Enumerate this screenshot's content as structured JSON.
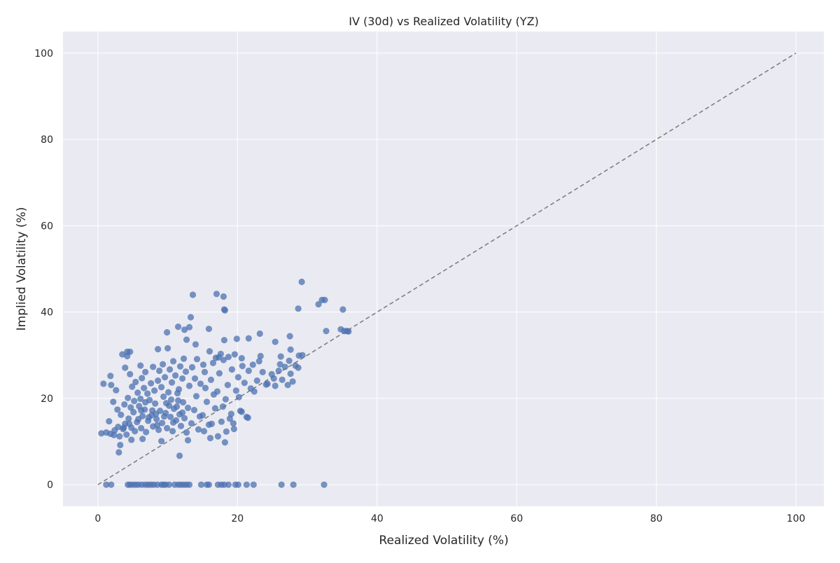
{
  "chart_data": {
    "type": "scatter",
    "title": "IV (30d) vs Realized Volatility (YZ)",
    "xlabel": "Realized Volatility (%)",
    "ylabel": "Implied Volatility (%)",
    "xlim": [
      -5,
      104
    ],
    "ylim": [
      -5,
      105
    ],
    "xticks": [
      0,
      20,
      40,
      60,
      80,
      100
    ],
    "yticks": [
      0,
      20,
      40,
      60,
      80,
      100
    ],
    "grid": true,
    "point_color": "#4c72b0",
    "reference_line": {
      "style": "dashed",
      "color": "#808080",
      "from": [
        0,
        0
      ],
      "to": [
        100,
        100
      ]
    },
    "points": [
      [
        29.2,
        47
      ],
      [
        13.6,
        44
      ],
      [
        17,
        44.2
      ],
      [
        18,
        43.6
      ],
      [
        18.1,
        40.6
      ],
      [
        18.2,
        40.4
      ],
      [
        28.7,
        40.8
      ],
      [
        31.6,
        41.8
      ],
      [
        32.1,
        42.8
      ],
      [
        32.5,
        42.8
      ],
      [
        35.1,
        40.6
      ],
      [
        13.3,
        38.8
      ],
      [
        11.5,
        36.6
      ],
      [
        13.1,
        36.5
      ],
      [
        15.9,
        36.1
      ],
      [
        32.7,
        35.6
      ],
      [
        34.8,
        36
      ],
      [
        35.3,
        35.6
      ],
      [
        35.7,
        35.6
      ],
      [
        35.9,
        35.5
      ],
      [
        9.9,
        35.3
      ],
      [
        12.4,
        35.9
      ],
      [
        27.5,
        34.4
      ],
      [
        23.2,
        35
      ],
      [
        21.6,
        33.9
      ],
      [
        25.4,
        33.1
      ],
      [
        12.7,
        33.6
      ],
      [
        14,
        32.5
      ],
      [
        8.6,
        31.4
      ],
      [
        10,
        31.6
      ],
      [
        4.2,
        30.8
      ],
      [
        4.6,
        30.8
      ],
      [
        4.2,
        29.8
      ],
      [
        29.3,
        30
      ],
      [
        28.8,
        29.9
      ],
      [
        27.6,
        31.3
      ],
      [
        26.2,
        29.7
      ],
      [
        3.5,
        30.2
      ],
      [
        6.1,
        27.6
      ],
      [
        0.8,
        23.4
      ],
      [
        1.8,
        25.2
      ],
      [
        3.0,
        7.5
      ],
      [
        11.7,
        6.7
      ],
      [
        3.2,
        9.2
      ],
      [
        1.6,
        14.7
      ],
      [
        0.5,
        11.9
      ],
      [
        1.2,
        12.1
      ],
      [
        1.8,
        11.8
      ],
      [
        2.4,
        12.6
      ],
      [
        2.9,
        13.4
      ],
      [
        3.1,
        11.2
      ],
      [
        3.6,
        12.9
      ],
      [
        3.9,
        14.1
      ],
      [
        4.1,
        11.6
      ],
      [
        4.4,
        15.3
      ],
      [
        4.8,
        13.2
      ],
      [
        5.1,
        16.8
      ],
      [
        5.3,
        12.4
      ],
      [
        5.6,
        14.5
      ],
      [
        5.9,
        18.2
      ],
      [
        6.2,
        13.1
      ],
      [
        6.4,
        15.9
      ],
      [
        6.7,
        17.4
      ],
      [
        6.9,
        12.2
      ],
      [
        7.2,
        14.8
      ],
      [
        7.4,
        19.6
      ],
      [
        7.7,
        16.1
      ],
      [
        7.9,
        13.5
      ],
      [
        8.2,
        18.8
      ],
      [
        8.4,
        15.2
      ],
      [
        8.7,
        12.7
      ],
      [
        8.9,
        17.1
      ],
      [
        9.2,
        14.3
      ],
      [
        9.4,
        20.4
      ],
      [
        9.7,
        16.6
      ],
      [
        9.9,
        13.1
      ],
      [
        10.2,
        18.3
      ],
      [
        10.4,
        15.7
      ],
      [
        10.7,
        12.4
      ],
      [
        10.9,
        17.6
      ],
      [
        11.2,
        14.9
      ],
      [
        11.4,
        21.2
      ],
      [
        11.7,
        16.3
      ],
      [
        11.9,
        13.6
      ],
      [
        12.2,
        19.1
      ],
      [
        12.4,
        15.4
      ],
      [
        12.7,
        12.1
      ],
      [
        12.9,
        17.8
      ],
      [
        3.3,
        16.2
      ],
      [
        3.8,
        18.6
      ],
      [
        4.3,
        20.1
      ],
      [
        4.7,
        17.9
      ],
      [
        5.2,
        19.4
      ],
      [
        5.7,
        21.3
      ],
      [
        6.1,
        19.9
      ],
      [
        6.6,
        22.4
      ],
      [
        7.1,
        21.1
      ],
      [
        7.6,
        23.5
      ],
      [
        8.1,
        21.8
      ],
      [
        8.6,
        24.1
      ],
      [
        9.1,
        22.6
      ],
      [
        9.6,
        24.9
      ],
      [
        10.1,
        21.4
      ],
      [
        10.6,
        23.7
      ],
      [
        11.1,
        25.3
      ],
      [
        11.6,
        22.1
      ],
      [
        12.1,
        24.6
      ],
      [
        12.6,
        26.2
      ],
      [
        13.1,
        22.9
      ],
      [
        5.4,
        23.8
      ],
      [
        4.6,
        25.6
      ],
      [
        6.8,
        26.1
      ],
      [
        7.9,
        27.3
      ],
      [
        9.3,
        27.9
      ],
      [
        10.8,
        28.6
      ],
      [
        3.9,
        27.1
      ],
      [
        2.6,
        21.9
      ],
      [
        2.2,
        19.2
      ],
      [
        1.9,
        23.1
      ],
      [
        2.8,
        17.4
      ],
      [
        4.9,
        22.7
      ],
      [
        6.3,
        24.7
      ],
      [
        8.8,
        26.4
      ],
      [
        10.3,
        26.7
      ],
      [
        11.8,
        27.4
      ],
      [
        12.3,
        29.2
      ],
      [
        13.4,
        14.2
      ],
      [
        13.8,
        17.3
      ],
      [
        14.1,
        20.5
      ],
      [
        14.4,
        12.8
      ],
      [
        14.7,
        23.4
      ],
      [
        15.0,
        16.1
      ],
      [
        15.3,
        26.1
      ],
      [
        15.6,
        19.2
      ],
      [
        15.9,
        13.9
      ],
      [
        16.2,
        24.3
      ],
      [
        16.5,
        28.2
      ],
      [
        16.8,
        17.7
      ],
      [
        17.1,
        21.6
      ],
      [
        17.4,
        25.8
      ],
      [
        17.7,
        14.6
      ],
      [
        18.0,
        28.9
      ],
      [
        18.3,
        19.8
      ],
      [
        18.6,
        23.1
      ],
      [
        18.9,
        15.3
      ],
      [
        19.2,
        26.7
      ],
      [
        19.5,
        12.9
      ],
      [
        19.8,
        21.8
      ],
      [
        20.1,
        24.9
      ],
      [
        20.4,
        17.1
      ],
      [
        20.7,
        27.5
      ],
      [
        21.0,
        23.6
      ],
      [
        21.3,
        15.7
      ],
      [
        21.6,
        26.4
      ],
      [
        13.5,
        27.2
      ],
      [
        14.2,
        29.1
      ],
      [
        15.1,
        27.8
      ],
      [
        16.0,
        30.9
      ],
      [
        16.9,
        29.4
      ],
      [
        17.6,
        30.3
      ],
      [
        18.7,
        29.6
      ],
      [
        19.6,
        30.2
      ],
      [
        20.6,
        29.3
      ],
      [
        19.9,
        33.8
      ],
      [
        18.1,
        33.5
      ],
      [
        17.3,
        29.5
      ],
      [
        15.4,
        22.4
      ],
      [
        16.6,
        20.9
      ],
      [
        17.9,
        18.1
      ],
      [
        19.1,
        16.4
      ],
      [
        18.4,
        12.3
      ],
      [
        17.2,
        11.2
      ],
      [
        16.3,
        14.1
      ],
      [
        15.2,
        12.4
      ],
      [
        14.6,
        15.8
      ],
      [
        13.9,
        24.6
      ],
      [
        20.2,
        20.3
      ],
      [
        21.9,
        22.3
      ],
      [
        22.2,
        27.8
      ],
      [
        22.8,
        24.1
      ],
      [
        23.1,
        28.6
      ],
      [
        23.6,
        26.1
      ],
      [
        24.3,
        23.4
      ],
      [
        24.9,
        25.6
      ],
      [
        25.4,
        22.9
      ],
      [
        25.9,
        26.4
      ],
      [
        26.4,
        24.3
      ],
      [
        26.8,
        27.3
      ],
      [
        27.2,
        23.1
      ],
      [
        27.6,
        25.7
      ],
      [
        27.9,
        23.9
      ],
      [
        28.3,
        27.6
      ],
      [
        28.7,
        27.1
      ],
      [
        26.1,
        27.9
      ],
      [
        24.1,
        23.2
      ],
      [
        21.5,
        15.5
      ],
      [
        22.4,
        21.6
      ],
      [
        23.3,
        29.8
      ],
      [
        25.2,
        24.6
      ],
      [
        27.4,
        28.7
      ],
      [
        20.6,
        16.9
      ],
      [
        19.4,
        14.2
      ],
      [
        18.2,
        9.8
      ],
      [
        16.1,
        10.8
      ],
      [
        12.9,
        10.3
      ],
      [
        9.1,
        10.1
      ],
      [
        6.4,
        10.6
      ],
      [
        4.8,
        10.4
      ],
      [
        7.3,
        15.6
      ],
      [
        8.3,
        16.4
      ],
      [
        9.8,
        18.9
      ],
      [
        10.5,
        19.7
      ],
      [
        11.3,
        18.1
      ],
      [
        6.8,
        19.1
      ],
      [
        5.8,
        15.2
      ],
      [
        7.8,
        17.2
      ],
      [
        8.5,
        13.8
      ],
      [
        9.5,
        15.8
      ],
      [
        10.8,
        14.4
      ],
      [
        12.1,
        16.7
      ],
      [
        11.5,
        19.5
      ],
      [
        6.2,
        17.2
      ],
      [
        4.5,
        14.1
      ],
      [
        3.7,
        13.2
      ],
      [
        2.3,
        11.5
      ],
      [
        1.2,
        0
      ],
      [
        1.9,
        0
      ],
      [
        4.3,
        0
      ],
      [
        4.6,
        0
      ],
      [
        5.0,
        0
      ],
      [
        5.4,
        0
      ],
      [
        5.8,
        0
      ],
      [
        6.3,
        0
      ],
      [
        6.8,
        0
      ],
      [
        7.2,
        0
      ],
      [
        7.6,
        0
      ],
      [
        8.0,
        0
      ],
      [
        8.5,
        0
      ],
      [
        9.1,
        0
      ],
      [
        9.4,
        0
      ],
      [
        9.7,
        0
      ],
      [
        10.2,
        0
      ],
      [
        11.0,
        0
      ],
      [
        11.5,
        0
      ],
      [
        11.9,
        0
      ],
      [
        12.3,
        0
      ],
      [
        12.7,
        0
      ],
      [
        13.1,
        0
      ],
      [
        14.8,
        0
      ],
      [
        15.6,
        0
      ],
      [
        15.9,
        0
      ],
      [
        17.2,
        0
      ],
      [
        17.7,
        0
      ],
      [
        18.1,
        0
      ],
      [
        18.7,
        0
      ],
      [
        19.7,
        0
      ],
      [
        20.1,
        0
      ],
      [
        21.3,
        0
      ],
      [
        22.3,
        0
      ],
      [
        26.3,
        0
      ],
      [
        28.0,
        0
      ],
      [
        32.4,
        0
      ]
    ]
  }
}
